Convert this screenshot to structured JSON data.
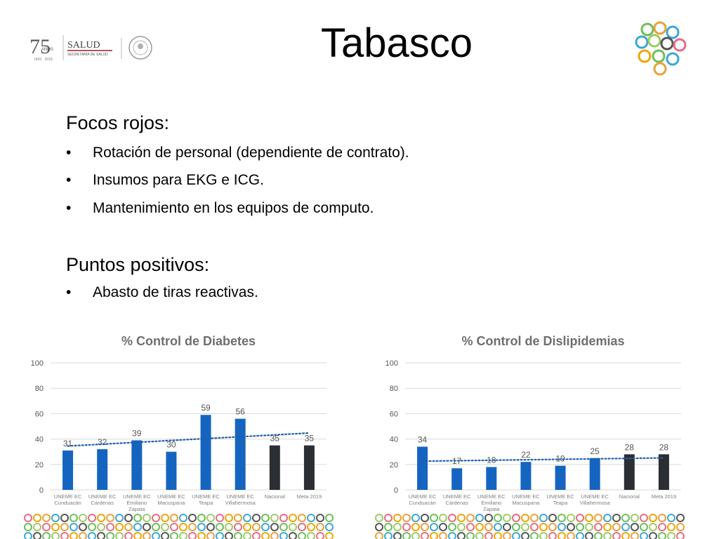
{
  "header": {
    "title": "Tabasco",
    "logo_text": {
      "number": "75",
      "small": "AÑOS",
      "years": "1943 · 2018",
      "salud": "SALUD",
      "secretaria": "SECRETARÍA DE SALUD"
    }
  },
  "sections": [
    {
      "heading": "Focos rojos:",
      "items": [
        "Rotación de personal (dependiente de contrato).",
        "Insumos para EKG e ICG.",
        "Mantenimiento en los equipos de computo."
      ]
    },
    {
      "heading": "Puntos positivos:",
      "items": [
        "Abasto de tiras reactivas."
      ]
    }
  ],
  "bullet_char": "•",
  "colors": {
    "blue": "#1565c0",
    "dark": "#2b2e33",
    "trend": "#1f5fa8",
    "grid": "#d9d9d9",
    "axis_text": "#7f7f7f",
    "title_text": "#6e6e6e"
  },
  "chart_data": [
    {
      "type": "bar",
      "title": "% Control de Diabetes",
      "categories": [
        "UNEME EC Cunduacán",
        "UNEME EC Cárdenas",
        "UNEME EC Emiliano Zapata",
        "UNEME EC Macuspana",
        "UNEME EC Teapa",
        "UNEME EC Villahermosa",
        "Nacional",
        "Meta 2019"
      ],
      "values": [
        31,
        32,
        39,
        30,
        59,
        56,
        35,
        35
      ],
      "ylim": [
        0,
        100
      ],
      "yticks": [
        0,
        20,
        40,
        60,
        80,
        100
      ],
      "trendline": "linear dotted",
      "grid": true
    },
    {
      "type": "bar",
      "title": "% Control de Dislipidemias",
      "categories": [
        "UNEME EC Cunduacán",
        "UNEME EC Cárdenas",
        "UNEME EC Emiliano Zapata",
        "UNEME EC Macuspana",
        "UNEME EC Teapa",
        "UNEME EC Villahermosa",
        "Nacional",
        "Meta 2019"
      ],
      "values": [
        34,
        17,
        18,
        22,
        19,
        25,
        28,
        28
      ],
      "ylim": [
        0,
        100
      ],
      "yticks": [
        0,
        20,
        40,
        60,
        80,
        100
      ],
      "trendline": "linear dotted",
      "grid": true
    }
  ]
}
